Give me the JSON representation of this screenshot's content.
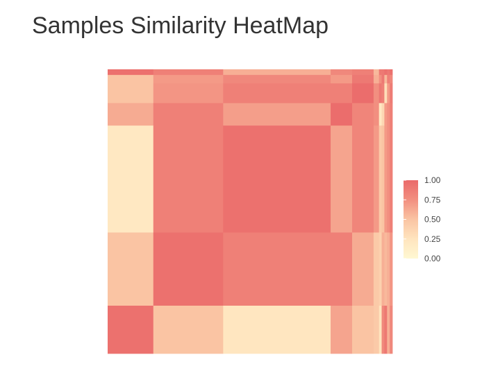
{
  "title": "Samples Similarity HeatMap",
  "chart_data": {
    "type": "heatmap",
    "title": "Samples Similarity HeatMap",
    "xlabel": "",
    "ylabel": "",
    "grid": false,
    "legend": "right",
    "color_range": [
      0,
      1
    ],
    "colorscale": [
      [
        0.0,
        "#FFF8D2"
      ],
      [
        0.25,
        "#FFE4BE"
      ],
      [
        0.5,
        "#FAC4A3"
      ],
      [
        0.75,
        "#F28F80"
      ],
      [
        1.0,
        "#EA6A6A"
      ]
    ],
    "legend_ticks": [
      "1.00",
      "0.75",
      "0.50",
      "0.25",
      "0.00"
    ],
    "legend_tick_values": [
      1.0,
      0.75,
      0.5,
      0.25,
      0.0
    ],
    "column_weights": [
      17,
      26,
      40,
      8,
      8,
      2,
      1,
      1,
      1,
      1,
      1
    ],
    "row_weights": [
      2,
      3,
      7,
      8,
      38,
      26,
      17
    ],
    "values": [
      [
        0.95,
        0.85,
        0.6,
        0.8,
        0.85,
        0.55,
        0.9,
        0.9,
        0.95,
        0.9,
        0.95
      ],
      [
        0.5,
        0.7,
        0.8,
        0.7,
        0.9,
        0.6,
        0.75,
        0.9,
        0.55,
        0.85,
        0.8
      ],
      [
        0.5,
        0.72,
        0.85,
        0.85,
        0.98,
        0.75,
        0.9,
        0.85,
        0.3,
        0.7,
        0.88
      ],
      [
        0.62,
        0.85,
        0.68,
        0.98,
        0.82,
        0.75,
        0.2,
        0.35,
        0.7,
        0.75,
        0.85
      ],
      [
        0.2,
        0.85,
        0.95,
        0.65,
        0.82,
        0.7,
        0.45,
        0.5,
        0.7,
        0.75,
        0.85
      ],
      [
        0.5,
        0.95,
        0.85,
        0.85,
        0.62,
        0.45,
        0.4,
        0.6,
        0.55,
        0.6,
        0.72
      ],
      [
        0.95,
        0.5,
        0.22,
        0.65,
        0.5,
        0.45,
        0.25,
        0.8,
        0.9,
        0.6,
        0.8
      ]
    ]
  }
}
